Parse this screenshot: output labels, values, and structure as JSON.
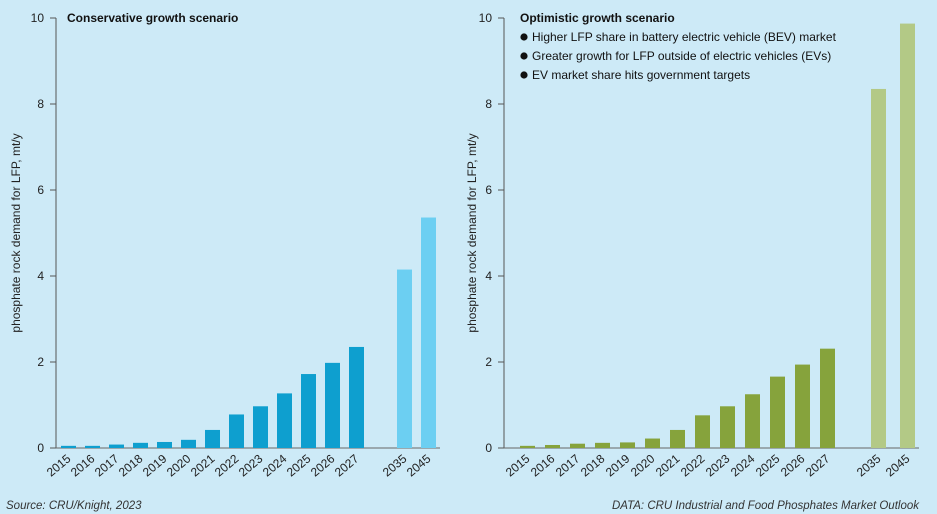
{
  "chart_data": [
    {
      "type": "bar",
      "title": "Conservative growth scenario",
      "ylabel": "phosphate rock demand for LFP, mt/y",
      "ylim": [
        0,
        10
      ],
      "yticks": [
        "0",
        "2",
        "4",
        "6",
        "8",
        "10"
      ],
      "categories": [
        "2015",
        "2016",
        "2017",
        "2018",
        "2019",
        "2020",
        "2021",
        "2022",
        "2023",
        "2024",
        "2025",
        "2026",
        "2027",
        "2035",
        "2045"
      ],
      "values": [
        0.05,
        0.05,
        0.08,
        0.12,
        0.14,
        0.19,
        0.42,
        0.78,
        0.97,
        1.27,
        1.72,
        1.98,
        2.35,
        4.15,
        5.36
      ],
      "colors": {
        "historic": "#0e9fcf",
        "projected": "#6ccff2"
      },
      "notes": []
    },
    {
      "type": "bar",
      "title": "Optimistic growth scenario",
      "ylabel": "phosphate rock demand for LFP, mt/y",
      "ylim": [
        0,
        10
      ],
      "yticks": [
        "0",
        "2",
        "4",
        "6",
        "8",
        "10"
      ],
      "categories": [
        "2015",
        "2016",
        "2017",
        "2018",
        "2019",
        "2020",
        "2021",
        "2022",
        "2023",
        "2024",
        "2025",
        "2026",
        "2027",
        "2035",
        "2045"
      ],
      "values": [
        0.05,
        0.07,
        0.1,
        0.12,
        0.13,
        0.22,
        0.42,
        0.76,
        0.97,
        1.25,
        1.66,
        1.94,
        2.31,
        8.35,
        9.87
      ],
      "colors": {
        "historic": "#86a33c",
        "projected": "#b3c986"
      },
      "notes": [
        "Higher LFP share in battery electric vehicle (BEV) market",
        "Greater growth for LFP outside of electric vehicles (EVs)",
        "EV market share hits government targets"
      ]
    }
  ],
  "footer": {
    "source": "Source: CRU/Knight, 2023",
    "data_note": "DATA: CRU Industrial and Food Phosphates Market Outlook"
  }
}
